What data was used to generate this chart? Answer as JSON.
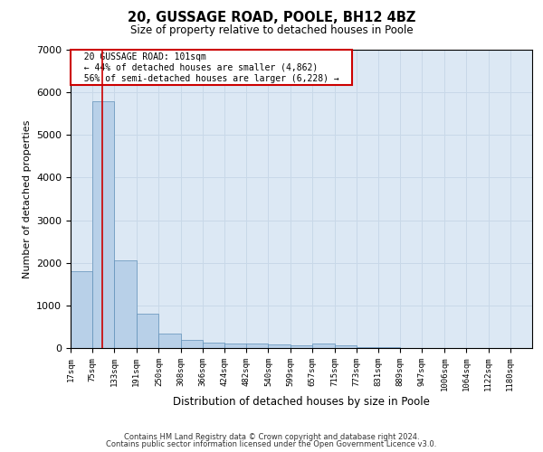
{
  "title": "20, GUSSAGE ROAD, POOLE, BH12 4BZ",
  "subtitle": "Size of property relative to detached houses in Poole",
  "xlabel": "Distribution of detached houses by size in Poole",
  "ylabel": "Number of detached properties",
  "footnote1": "Contains HM Land Registry data © Crown copyright and database right 2024.",
  "footnote2": "Contains public sector information licensed under the Open Government Licence v3.0.",
  "annotation_title": "20 GUSSAGE ROAD: 101sqm",
  "annotation_line1": "← 44% of detached houses are smaller (4,862)",
  "annotation_line2": "56% of semi-detached houses are larger (6,228) →",
  "property_size": 101,
  "bins": [
    17,
    75,
    133,
    191,
    250,
    308,
    366,
    424,
    482,
    540,
    599,
    657,
    715,
    773,
    831,
    889,
    947,
    1006,
    1064,
    1122,
    1180
  ],
  "counts": [
    1800,
    5800,
    2050,
    800,
    350,
    200,
    120,
    110,
    100,
    75,
    70,
    100,
    70,
    20,
    15,
    10,
    5,
    5,
    3,
    3,
    3
  ],
  "bar_color": "#b8d0e8",
  "bar_edge_color": "#6090b8",
  "redline_color": "#cc0000",
  "grid_color": "#c8d8e8",
  "bg_color": "#dce8f4",
  "annotation_box_color": "#ffffff",
  "annotation_border_color": "#cc0000",
  "ylim": [
    0,
    7000
  ],
  "yticks": [
    0,
    1000,
    2000,
    3000,
    4000,
    5000,
    6000,
    7000
  ]
}
